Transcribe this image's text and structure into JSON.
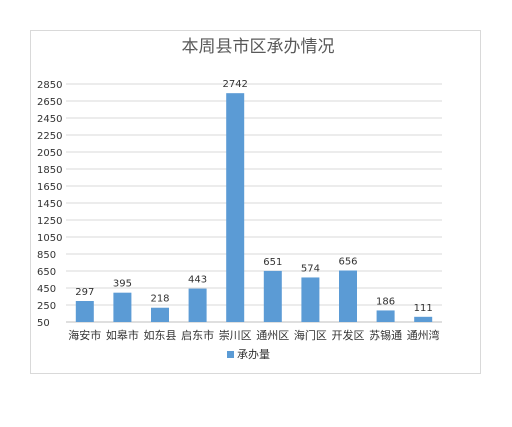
{
  "chart_data": {
    "type": "bar",
    "title": "本周县市区承办情况",
    "xlabel": "",
    "ylabel": "",
    "categories": [
      "海安市",
      "如皋市",
      "如东县",
      "启东市",
      "崇川区",
      "通州区",
      "海门区",
      "开发区",
      "苏锡通",
      "通州湾"
    ],
    "series": [
      {
        "name": "承办量",
        "color": "#5b9bd5",
        "values": [
          297,
          395,
          218,
          443,
          2742,
          651,
          574,
          656,
          186,
          111
        ]
      }
    ],
    "ylim": [
      50,
      2850
    ],
    "yticks": [
      50,
      250,
      450,
      650,
      850,
      1050,
      1250,
      1450,
      1650,
      1850,
      2050,
      2250,
      2450,
      2650,
      2850
    ],
    "grid": true,
    "legend": "bottom"
  }
}
